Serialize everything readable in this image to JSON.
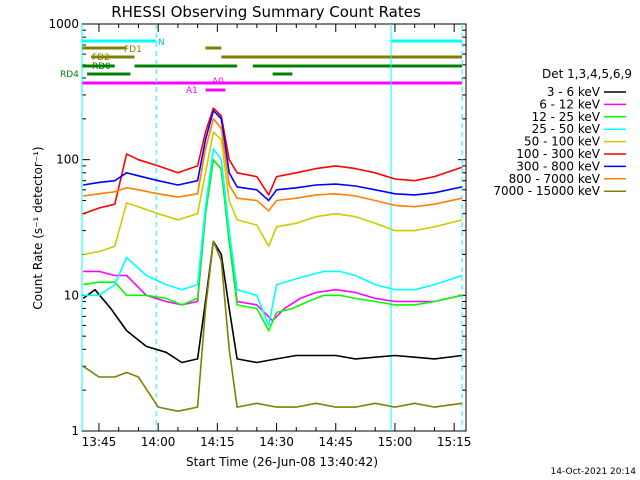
{
  "chart_data": {
    "type": "line",
    "title": "RHESSI Observing Summary Count Rates",
    "xlabel": "Start Time (26-Jun-08 13:40:42)",
    "ylabel": "Count Rate (s⁻¹ detector⁻¹)",
    "yscale": "log",
    "xlim": [
      "13:40:42",
      "15:18:00"
    ],
    "ylim": [
      1,
      1000
    ],
    "x_ticks": [
      "13:45",
      "14:00",
      "14:15",
      "14:30",
      "14:45",
      "15:00",
      "15:15"
    ],
    "y_ticks": [
      "1",
      "10",
      "100",
      "1000"
    ],
    "legend_title": "Det 1,3,4,5,6,9",
    "legend_position": "right",
    "series": [
      {
        "name": "3 - 6 keV",
        "color": "#000000",
        "x": [
          "13:41",
          "13:44",
          "13:48",
          "13:52",
          "13:57",
          "14:02",
          "14:06",
          "14:10",
          "14:12",
          "14:14",
          "14:16",
          "14:18",
          "14:20",
          "14:25",
          "14:30",
          "14:35",
          "14:40",
          "14:45",
          "14:50",
          "14:55",
          "15:00",
          "15:05",
          "15:10",
          "15:17"
        ],
        "values": [
          9.5,
          11,
          8,
          5.5,
          4.2,
          3.8,
          3.2,
          3.4,
          9,
          25,
          20,
          8,
          3.4,
          3.2,
          3.4,
          3.6,
          3.6,
          3.6,
          3.4,
          3.5,
          3.6,
          3.5,
          3.4,
          3.6
        ]
      },
      {
        "name": "6 - 12 keV",
        "color": "#ff00ff",
        "x": [
          "13:41",
          "13:45",
          "13:49",
          "13:52",
          "13:57",
          "14:02",
          "14:06",
          "14:10",
          "14:12",
          "14:14",
          "14:16",
          "14:18",
          "14:20",
          "14:25",
          "14:29",
          "14:32",
          "14:36",
          "14:40",
          "14:45",
          "14:50",
          "14:55",
          "15:00",
          "15:05",
          "15:10",
          "15:17"
        ],
        "values": [
          15,
          15,
          14,
          14,
          10,
          9,
          8.5,
          9,
          40,
          100,
          85,
          25,
          9,
          8.5,
          6.5,
          8,
          9.5,
          10.5,
          11,
          10.5,
          9.5,
          9,
          9,
          9,
          10
        ]
      },
      {
        "name": "12 - 25 keV",
        "color": "#00ff00",
        "x": [
          "13:41",
          "13:45",
          "13:49",
          "13:52",
          "13:57",
          "14:02",
          "14:06",
          "14:10",
          "14:12",
          "14:14",
          "14:16",
          "14:18",
          "14:20",
          "14:25",
          "14:28",
          "14:30",
          "14:34",
          "14:38",
          "14:42",
          "14:46",
          "14:50",
          "14:55",
          "15:00",
          "15:05",
          "15:10",
          "15:17"
        ],
        "values": [
          12,
          12.5,
          12.5,
          10,
          10,
          9.5,
          8.5,
          9.5,
          40,
          100,
          85,
          25,
          8.5,
          8,
          5.5,
          7.5,
          8,
          9,
          10,
          10,
          9.5,
          9,
          8.5,
          8.5,
          9,
          10
        ]
      },
      {
        "name": "25 - 50 keV",
        "color": "#00ffff",
        "x": [
          "13:41",
          "13:45",
          "13:49",
          "13:52",
          "13:57",
          "14:02",
          "14:06",
          "14:10",
          "14:12",
          "14:14",
          "14:16",
          "14:18",
          "14:20",
          "14:25",
          "14:28",
          "14:30",
          "14:34",
          "14:38",
          "14:42",
          "14:46",
          "14:50",
          "14:55",
          "15:00",
          "15:05",
          "15:10",
          "15:17"
        ],
        "values": [
          10,
          10,
          12,
          19,
          14,
          12,
          11,
          12,
          45,
          120,
          100,
          30,
          11,
          10,
          6,
          12,
          13,
          14,
          15,
          15,
          14,
          12,
          11,
          11,
          12,
          14
        ]
      },
      {
        "name": "50 - 100 keV",
        "color": "#cccc00",
        "x": [
          "13:41",
          "13:45",
          "13:49",
          "13:52",
          "13:55",
          "14:00",
          "14:05",
          "14:10",
          "14:12",
          "14:14",
          "14:16",
          "14:18",
          "14:20",
          "14:25",
          "14:28",
          "14:30",
          "14:35",
          "14:40",
          "14:45",
          "14:50",
          "14:55",
          "15:00",
          "15:05",
          "15:10",
          "15:17"
        ],
        "values": [
          20,
          21,
          23,
          48,
          45,
          40,
          36,
          40,
          80,
          160,
          140,
          50,
          36,
          33,
          23,
          32,
          34,
          38,
          40,
          38,
          34,
          30,
          30,
          32,
          36
        ]
      },
      {
        "name": "100 - 300 keV",
        "color": "#ff0000",
        "x": [
          "13:41",
          "13:45",
          "13:49",
          "13:52",
          "13:55",
          "14:00",
          "14:05",
          "14:10",
          "14:12",
          "14:14",
          "14:16",
          "14:18",
          "14:20",
          "14:25",
          "14:28",
          "14:30",
          "14:35",
          "14:40",
          "14:45",
          "14:50",
          "14:55",
          "15:00",
          "15:05",
          "15:10",
          "15:17"
        ],
        "values": [
          40,
          44,
          47,
          110,
          100,
          90,
          80,
          90,
          160,
          240,
          210,
          100,
          80,
          75,
          55,
          75,
          80,
          86,
          90,
          86,
          80,
          72,
          70,
          75,
          88
        ]
      },
      {
        "name": "300 - 800 keV",
        "color": "#0000ff",
        "x": [
          "13:41",
          "13:45",
          "13:49",
          "13:52",
          "13:55",
          "14:00",
          "14:05",
          "14:10",
          "14:12",
          "14:14",
          "14:16",
          "14:18",
          "14:20",
          "14:25",
          "14:28",
          "14:30",
          "14:35",
          "14:40",
          "14:45",
          "14:50",
          "14:55",
          "15:00",
          "15:05",
          "15:10",
          "15:17"
        ],
        "values": [
          65,
          68,
          70,
          80,
          76,
          70,
          65,
          70,
          140,
          230,
          200,
          80,
          63,
          60,
          50,
          60,
          62,
          65,
          66,
          64,
          60,
          56,
          55,
          57,
          63
        ]
      },
      {
        "name": "800 - 7000 keV",
        "color": "#ff8000",
        "x": [
          "13:41",
          "13:45",
          "13:49",
          "13:52",
          "13:55",
          "14:00",
          "14:05",
          "14:10",
          "14:12",
          "14:14",
          "14:16",
          "14:18",
          "14:20",
          "14:25",
          "14:28",
          "14:30",
          "14:35",
          "14:40",
          "14:45",
          "14:50",
          "14:55",
          "15:00",
          "15:05",
          "15:10",
          "15:17"
        ],
        "values": [
          54,
          56,
          58,
          62,
          60,
          56,
          53,
          56,
          120,
          200,
          170,
          65,
          52,
          50,
          42,
          50,
          52,
          55,
          56,
          54,
          50,
          46,
          45,
          47,
          52
        ]
      },
      {
        "name": "7000 - 15000 keV",
        "color": "#808000",
        "x": [
          "13:41",
          "13:45",
          "13:49",
          "13:52",
          "13:55",
          "14:00",
          "14:05",
          "14:10",
          "14:12",
          "14:14",
          "14:16",
          "14:18",
          "14:20",
          "14:25",
          "14:30",
          "14:35",
          "14:40",
          "14:45",
          "14:50",
          "14:55",
          "15:00",
          "15:05",
          "15:10",
          "15:17"
        ],
        "values": [
          3,
          2.5,
          2.5,
          2.7,
          2.5,
          1.5,
          1.4,
          1.5,
          8,
          25,
          18,
          4,
          1.5,
          1.6,
          1.5,
          1.5,
          1.6,
          1.5,
          1.5,
          1.6,
          1.5,
          1.6,
          1.5,
          1.6
        ]
      }
    ],
    "state_bars": [
      {
        "label": "N",
        "color": "#00ffff",
        "segments": [
          [
            "13:40:42",
            "13:59:30"
          ],
          [
            "14:59:00",
            "15:17:00"
          ]
        ]
      },
      {
        "label": "FD1",
        "color": "#808000",
        "segments": [
          [
            "13:40:42",
            "13:52:00"
          ],
          [
            "14:12:00",
            "14:16:00"
          ]
        ]
      },
      {
        "label": "FD2",
        "color": "#808000",
        "segments": [
          [
            "13:43:00",
            "13:54:00"
          ],
          [
            "14:16:00",
            "15:17:00"
          ]
        ]
      },
      {
        "label": "RD0",
        "color": "#008000",
        "segments": [
          [
            "13:40:42",
            "13:49:00"
          ],
          [
            "13:54:00",
            "14:20:00"
          ],
          [
            "14:24:00",
            "15:17:00"
          ]
        ]
      },
      {
        "label": "RD4",
        "color": "#008000",
        "segments": [
          [
            "13:42:00",
            "13:53:00"
          ],
          [
            "14:29:00",
            "14:34:00"
          ]
        ]
      },
      {
        "label": "A1",
        "color": "#ff00ff",
        "segments": [
          [
            "14:12:00",
            "14:17:00"
          ]
        ]
      },
      {
        "label": "A0",
        "color": "#ff00ff",
        "segments": [
          [
            "13:40:42",
            "15:17:00"
          ]
        ]
      }
    ],
    "footer_date": "14-Oct-2021 20:14"
  }
}
